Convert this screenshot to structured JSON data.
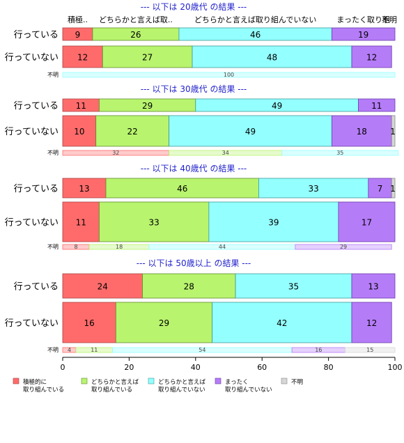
{
  "chart_data": {
    "type": "bar",
    "orientation": "horizontal",
    "stacked": "percent",
    "xlim": [
      0,
      100
    ],
    "x_ticks": [
      "0",
      "20",
      "40",
      "60",
      "80",
      "100"
    ],
    "series": [
      {
        "name": "積極的に\n取り組んでいる",
        "color": "#ff6b6b"
      },
      {
        "name": "どちらかと言えば\n取り組んでいる",
        "color": "#b8f46e"
      },
      {
        "name": "どちらかと言えば\n取り組んでいない",
        "color": "#94ffff"
      },
      {
        "name": "まったく\n取り組んでいない",
        "color": "#b57cf8"
      },
      {
        "name": "不明",
        "color": "#d6d6d6"
      }
    ],
    "panels": [
      {
        "title": "--- 以下は 20歳代 の結果 ---",
        "header_labels": [
          "積極..",
          "どちらかと言えば取..",
          "どちらかと言えば取り組んでいない",
          "まったく取り組",
          "不明"
        ],
        "bars": [
          {
            "label": "行っている",
            "values": [
              9,
              26,
              46,
              19,
              0
            ],
            "value_labels": [
              "9",
              "26",
              "46",
              "19",
              ""
            ]
          },
          {
            "label": "行っていない",
            "values": [
              12,
              27,
              48,
              12,
              0
            ],
            "value_labels": [
              "12",
              "27",
              "48",
              "12",
              ""
            ]
          }
        ],
        "unknown": {
          "label": "不明",
          "values": [
            0,
            0,
            100,
            0,
            0
          ],
          "value_labels": [
            "",
            "",
            "100",
            "",
            ""
          ]
        }
      },
      {
        "title": "--- 以下は 30歳代 の結果 ---",
        "bars": [
          {
            "label": "行っている",
            "values": [
              11,
              29,
              49,
              11,
              0
            ],
            "value_labels": [
              "11",
              "29",
              "49",
              "11",
              ""
            ]
          },
          {
            "label": "行っていない",
            "values": [
              10,
              22,
              49,
              18,
              1
            ],
            "value_labels": [
              "10",
              "22",
              "49",
              "18",
              "1"
            ]
          }
        ],
        "unknown": {
          "label": "不明",
          "values": [
            32,
            34,
            35,
            0,
            0
          ],
          "value_labels": [
            "32",
            "34",
            "35",
            "",
            ""
          ]
        }
      },
      {
        "title": "--- 以下は 40歳代 の結果 ---",
        "bars": [
          {
            "label": "行っている",
            "values": [
              13,
              46,
              33,
              7,
              1
            ],
            "value_labels": [
              "13",
              "46",
              "33",
              "7",
              "1"
            ]
          },
          {
            "label": "行っていない",
            "values": [
              11,
              33,
              39,
              17,
              0
            ],
            "value_labels": [
              "11",
              "33",
              "39",
              "17",
              ""
            ]
          }
        ],
        "unknown": {
          "label": "不明",
          "values": [
            8,
            18,
            44,
            29,
            0
          ],
          "value_labels": [
            "8",
            "18",
            "44",
            "29",
            ""
          ]
        }
      },
      {
        "title": "--- 以下は 50歳以上 の結果 ---",
        "bars": [
          {
            "label": "行っている",
            "values": [
              24,
              28,
              35,
              13,
              0
            ],
            "value_labels": [
              "24",
              "28",
              "35",
              "13",
              ""
            ]
          },
          {
            "label": "行っていない",
            "values": [
              16,
              29,
              42,
              12,
              0
            ],
            "value_labels": [
              "16",
              "29",
              "42",
              "12",
              ""
            ]
          }
        ],
        "unknown": {
          "label": "不明",
          "values": [
            4,
            11,
            54,
            16,
            15
          ],
          "value_labels": [
            "4",
            "11",
            "54",
            "16",
            "15"
          ]
        }
      }
    ],
    "title_color": "#2222cc",
    "legend_position": "bottom"
  }
}
